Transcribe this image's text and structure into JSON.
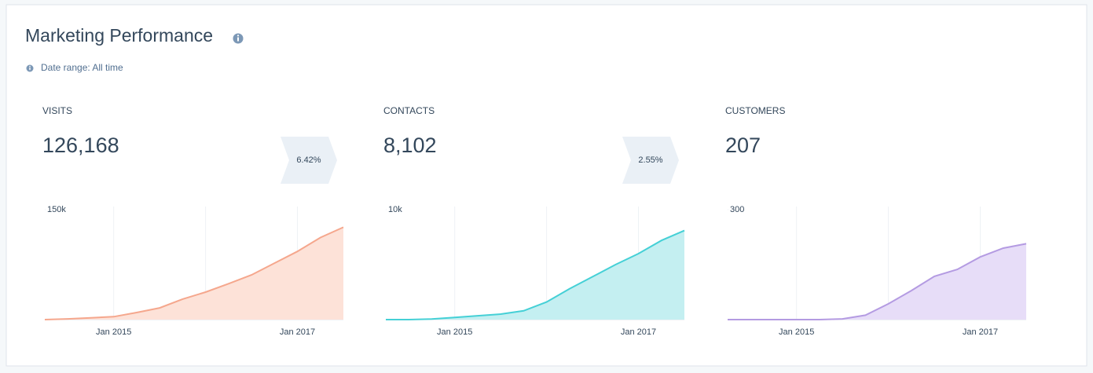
{
  "title": "Marketing Performance",
  "date_range": "Date range: All time",
  "conversions": [
    "6.42%",
    "2.55%"
  ],
  "chart_data": [
    {
      "type": "area",
      "title": "VISITS",
      "total": "126,168",
      "x": [
        "2014-04",
        "2014-07",
        "2014-10",
        "2015-01",
        "2015-04",
        "2015-07",
        "2015-10",
        "2016-01",
        "2016-04",
        "2016-07",
        "2016-10",
        "2017-01",
        "2017-04",
        "2017-07"
      ],
      "series": [
        {
          "color": "#f5a78d",
          "fill": "#fde2d8",
          "values": [
            0,
            1000,
            2500,
            4000,
            9600,
            16000,
            28000,
            37500,
            49000,
            61000,
            77000,
            93000,
            112000,
            126000
          ]
        }
      ],
      "ylim": [
        0,
        150000
      ],
      "yticks": [
        {
          "value": 150000,
          "label": "150k"
        }
      ],
      "xticks": [
        {
          "value": "2015-01",
          "label": "Jan 2015"
        },
        {
          "value": "2016-01",
          "label": null
        },
        {
          "value": "2017-01",
          "label": "Jan 2017"
        }
      ]
    },
    {
      "type": "area",
      "title": "CONTACTS",
      "total": "8,102",
      "x": [
        "2014-04",
        "2014-07",
        "2014-10",
        "2015-01",
        "2015-04",
        "2015-07",
        "2015-10",
        "2016-01",
        "2016-04",
        "2016-07",
        "2016-10",
        "2017-01",
        "2017-04",
        "2017-07"
      ],
      "series": [
        {
          "color": "#45d0d6",
          "fill": "#c4eff1",
          "values": [
            0,
            0,
            50,
            200,
            350,
            500,
            800,
            1600,
            2800,
            3900,
            5000,
            6000,
            7200,
            8100
          ]
        }
      ],
      "ylim": [
        0,
        10000
      ],
      "yticks": [
        {
          "value": 10000,
          "label": "10k"
        }
      ],
      "xticks": [
        {
          "value": "2015-01",
          "label": "Jan 2015"
        },
        {
          "value": "2016-01",
          "label": null
        },
        {
          "value": "2017-01",
          "label": "Jan 2017"
        }
      ]
    },
    {
      "type": "area",
      "title": "CUSTOMERS",
      "total": "207",
      "x": [
        "2014-04",
        "2014-07",
        "2014-10",
        "2015-01",
        "2015-04",
        "2015-07",
        "2015-10",
        "2016-01",
        "2016-04",
        "2016-07",
        "2016-10",
        "2017-01",
        "2017-04",
        "2017-07"
      ],
      "series": [
        {
          "color": "#b49be2",
          "fill": "#e7ddf8",
          "values": [
            0,
            0,
            0,
            0,
            0,
            2,
            12,
            43,
            79,
            118,
            137,
            171,
            195,
            207
          ]
        }
      ],
      "ylim": [
        0,
        300
      ],
      "yticks": [
        300
      ],
      "xticks": [
        {
          "value": "2015-01",
          "label": "Jan 2015"
        },
        {
          "value": "2016-01",
          "label": null
        },
        {
          "value": "2017-01",
          "label": "Jan 2017"
        }
      ]
    }
  ]
}
